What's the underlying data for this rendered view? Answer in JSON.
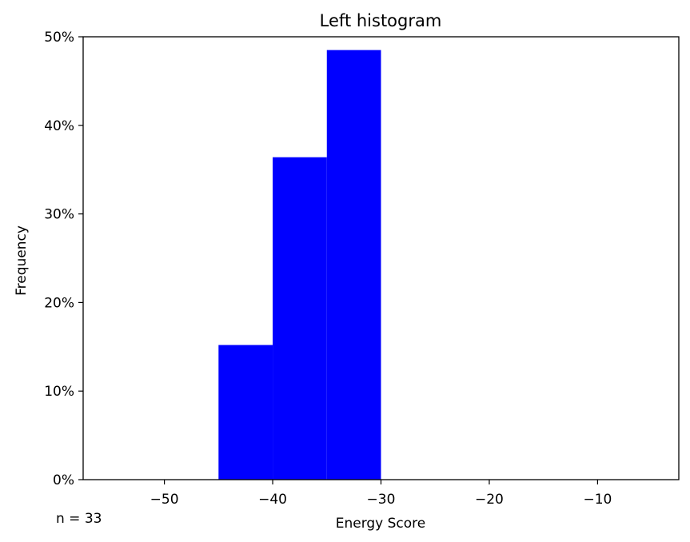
{
  "chart_data": {
    "type": "bar",
    "title": "Left histogram",
    "xlabel": "Energy Score",
    "ylabel": "Frequency",
    "xlim": [
      -57.5,
      -2.5
    ],
    "ylim": [
      0,
      0.5
    ],
    "xticks": [
      -50,
      -40,
      -30,
      -20,
      -10
    ],
    "xtick_labels": [
      "−50",
      "−40",
      "−30",
      "−20",
      "−10"
    ],
    "yticks": [
      0,
      0.1,
      0.2,
      0.3,
      0.4,
      0.5
    ],
    "ytick_labels": [
      "0%",
      "10%",
      "20%",
      "30%",
      "40%",
      "50%"
    ],
    "bins": [
      {
        "x0": -45,
        "x1": -40,
        "value": 0.152
      },
      {
        "x0": -40,
        "x1": -35,
        "value": 0.364
      },
      {
        "x0": -35,
        "x1": -30,
        "value": 0.485
      }
    ],
    "bar_color": "#0000ff",
    "grid": false,
    "annotation": "n = 33"
  }
}
